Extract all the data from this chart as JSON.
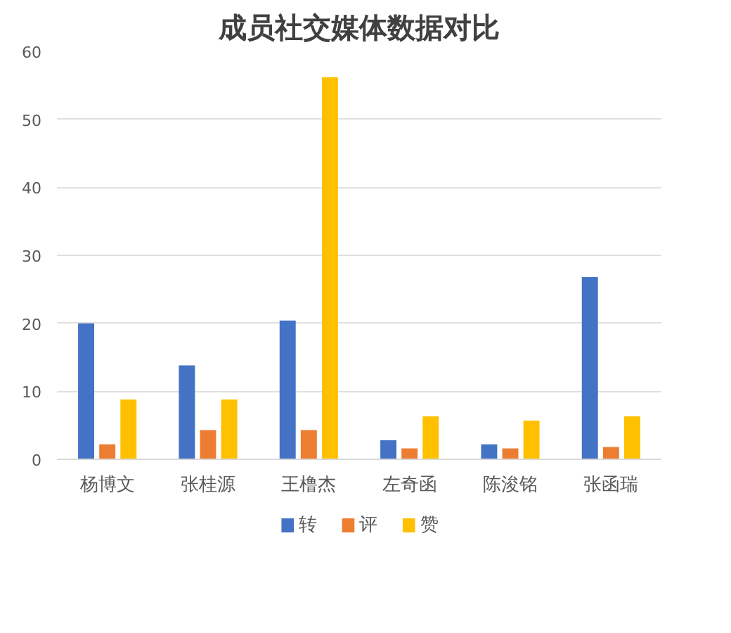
{
  "chart_data": {
    "type": "bar",
    "title": "成员社交媒体数据对比",
    "categories": [
      "杨博文",
      "张桂源",
      "王橹杰",
      "左奇函",
      "陈浚铭",
      "张函瑞"
    ],
    "series": [
      {
        "name": "转",
        "color": "#4472c4",
        "values": [
          20,
          13.8,
          20.4,
          2.8,
          2.2,
          26.8
        ]
      },
      {
        "name": "评",
        "color": "#ed7d31",
        "values": [
          2.2,
          4.3,
          4.3,
          1.6,
          1.6,
          1.8
        ]
      },
      {
        "name": "赞",
        "color": "#ffc000",
        "values": [
          8.8,
          8.8,
          56.2,
          6.3,
          5.7,
          6.3
        ]
      }
    ],
    "ylim": [
      0,
      60
    ],
    "yticks": [
      0,
      10,
      20,
      30,
      40,
      50,
      60
    ],
    "grid": "y",
    "legend": "bottom"
  }
}
